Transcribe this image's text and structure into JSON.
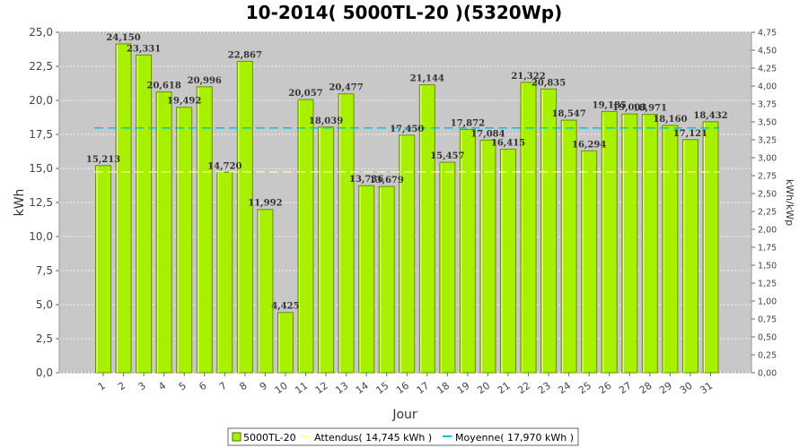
{
  "chart_data": {
    "type": "bar",
    "title": "10-2014( 5000TL-20 )(5320Wp)",
    "xlabel": "Jour",
    "ylabel": "kWh",
    "ylabel_right": "kWh/kWp",
    "ylim": [
      0,
      25
    ],
    "ylim_right": [
      0,
      4.75
    ],
    "yticks": [
      "0,0",
      "2,5",
      "5,0",
      "7,5",
      "10,0",
      "12,5",
      "15,0",
      "17,5",
      "20,0",
      "22,5",
      "25,0"
    ],
    "yticks_right": [
      "0,00",
      "0,25",
      "0,50",
      "0,75",
      "1,00",
      "1,25",
      "1,50",
      "1,75",
      "2,00",
      "2,25",
      "2,50",
      "2,75",
      "3,00",
      "3,25",
      "3,50",
      "3,75",
      "4,00",
      "4,25",
      "4,50",
      "4,75"
    ],
    "categories": [
      "1",
      "2",
      "3",
      "4",
      "5",
      "6",
      "7",
      "8",
      "9",
      "10",
      "11",
      "12",
      "13",
      "14",
      "15",
      "16",
      "17",
      "18",
      "19",
      "20",
      "21",
      "22",
      "23",
      "24",
      "25",
      "26",
      "27",
      "28",
      "29",
      "30",
      "31"
    ],
    "series": [
      {
        "name": "5000TL-20",
        "color": "#a6f000",
        "values": [
          15.213,
          24.15,
          23.331,
          20.618,
          19.492,
          20.996,
          14.72,
          22.867,
          11.992,
          4.425,
          20.057,
          18.039,
          20.477,
          13.736,
          13.679,
          17.45,
          21.144,
          15.457,
          17.872,
          17.084,
          16.415,
          21.322,
          20.835,
          18.547,
          16.294,
          19.185,
          19.003,
          18.971,
          18.16,
          17.121,
          18.432
        ],
        "labels": [
          "15,213",
          "24,150",
          "23,331",
          "20,618",
          "19,492",
          "20,996",
          "14,720",
          "22,867",
          "11,992",
          "4,425",
          "20,057",
          "18,039",
          "20,477",
          "13,736",
          "13,679",
          "17,450",
          "21,144",
          "15,457",
          "17,872",
          "17,084",
          "16,415",
          "21,322",
          "20,835",
          "18,547",
          "16,294",
          "19,185",
          "19,003",
          "18,971",
          "18,160",
          "17,121",
          "18,432"
        ]
      }
    ],
    "expected": {
      "name": "Attendus( 14,745 kWh )",
      "value": 14.745,
      "color": "#ffff99"
    },
    "average": {
      "name": "Moyenne( 17,970 kWh )",
      "value": 17.97,
      "color": "#00c0d8"
    },
    "grid": true,
    "legend_position": "bottom",
    "plot_background": "#c8c8c8"
  }
}
